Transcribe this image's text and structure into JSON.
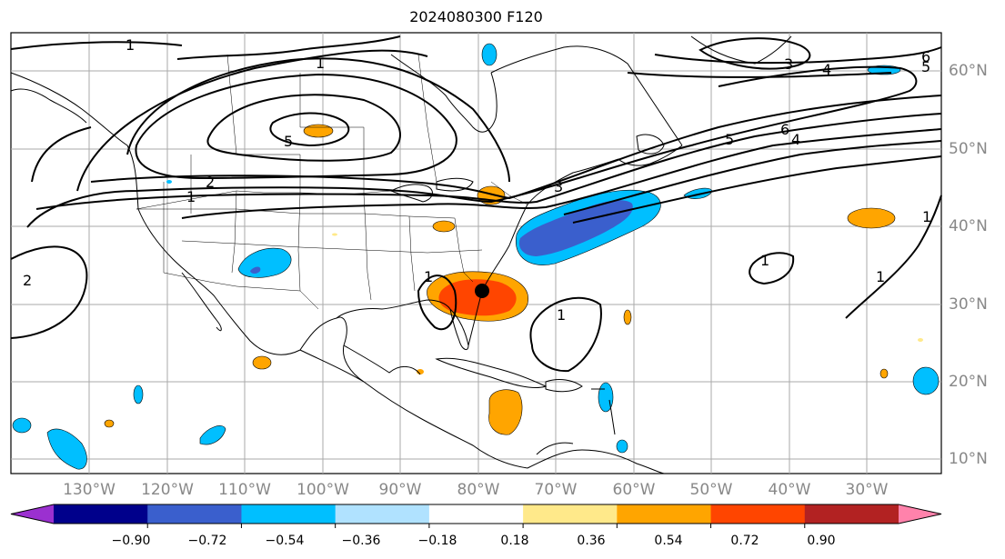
{
  "title": "2024080300 F120",
  "lon_labels": [
    "130°W",
    "120°W",
    "110°W",
    "100°W",
    "90°W",
    "80°W",
    "70°W",
    "60°W",
    "50°W",
    "40°W",
    "30°W"
  ],
  "lat_labels": [
    "60°N",
    "50°N",
    "40°N",
    "30°N",
    "20°N",
    "10°N"
  ],
  "colorbar": {
    "ticks": [
      "−0.90",
      "−0.72",
      "−0.54",
      "−0.36",
      "−0.18",
      "0.18",
      "0.36",
      "0.54",
      "0.72",
      "0.90"
    ],
    "colors": [
      "#9b30d0",
      "#00008b",
      "#3a5fcd",
      "#00bfff",
      "#b0e2ff",
      "#ffffff",
      "#ffe98a",
      "#ffa500",
      "#ff4500",
      "#b22222",
      "#ff82ab"
    ]
  },
  "contour_labels": [
    "1",
    "1",
    "1",
    "1",
    "1",
    "1",
    "1",
    "1",
    "2",
    "2",
    "3",
    "3",
    "4",
    "4",
    "5",
    "5",
    "5",
    "6",
    "6"
  ],
  "storm_marker": "filled black circle off southeastern US coast",
  "line_color": "#000000",
  "grid_color": "#aaaaaa"
}
